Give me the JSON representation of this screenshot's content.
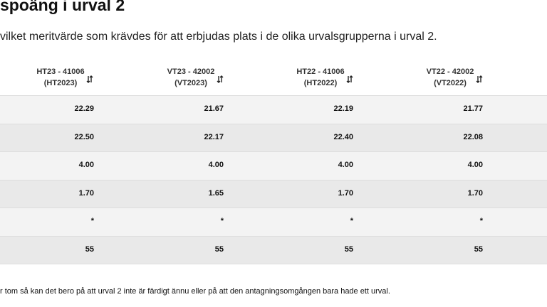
{
  "header": {
    "title": "spoäng i urval 2",
    "subtitle": "vilket meritvärde som krävdes för att erbjudas plats i de olika urvalsgrupperna i urval 2."
  },
  "table": {
    "columns": [
      {
        "line1": "HT23 - 41006",
        "line2": "(HT2023)"
      },
      {
        "line1": "VT23 - 42002",
        "line2": "(VT2023)"
      },
      {
        "line1": "HT22 - 41006",
        "line2": "(HT2022)"
      },
      {
        "line1": "VT22 - 42002",
        "line2": "(VT2022)"
      }
    ],
    "rows": [
      [
        "22.29",
        "21.67",
        "22.19",
        "21.77"
      ],
      [
        "22.50",
        "22.17",
        "22.40",
        "22.08"
      ],
      [
        "4.00",
        "4.00",
        "4.00",
        "4.00"
      ],
      [
        "1.70",
        "1.65",
        "1.70",
        "1.70"
      ],
      [
        "*",
        "*",
        "*",
        "*"
      ],
      [
        "55",
        "55",
        "55",
        "55"
      ]
    ]
  },
  "footnote": "r tom så kan det bero på att urval 2 inte är färdigt ännu eller på att den antagningsomgången bara hade ett urval."
}
